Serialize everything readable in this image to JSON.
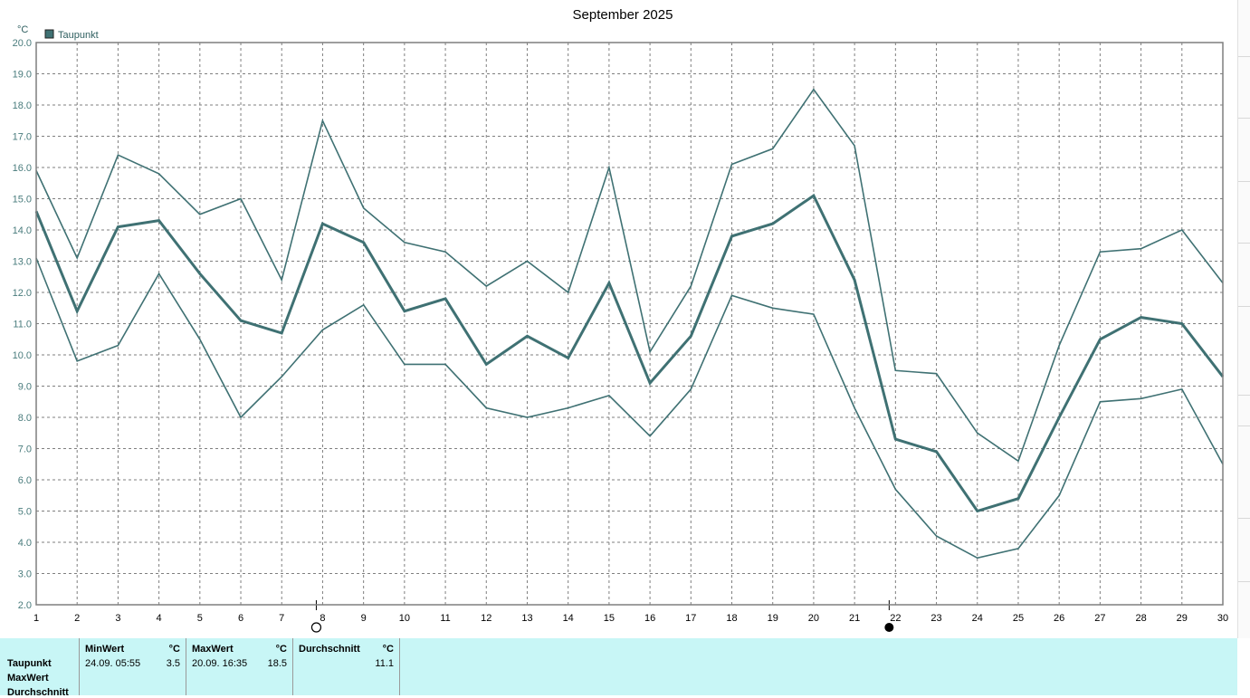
{
  "chart_data": {
    "type": "line",
    "title": "September 2025",
    "y_unit": "°C",
    "legend": [
      {
        "name": "Taupunkt",
        "color": "#3f7173"
      }
    ],
    "legend_placement": "top-left",
    "grid": true,
    "ylim": [
      2.0,
      20.0
    ],
    "y_ticks": [
      "2.0",
      "3.0",
      "4.0",
      "5.0",
      "6.0",
      "7.0",
      "8.0",
      "9.0",
      "10.0",
      "11.0",
      "12.0",
      "13.0",
      "14.0",
      "15.0",
      "16.0",
      "17.0",
      "18.0",
      "19.0",
      "20.0"
    ],
    "x": [
      1,
      2,
      3,
      4,
      5,
      6,
      7,
      8,
      9,
      10,
      11,
      12,
      13,
      14,
      15,
      16,
      17,
      18,
      19,
      20,
      21,
      22,
      23,
      24,
      25,
      26,
      27,
      28,
      29,
      30
    ],
    "x_tick_labels": [
      "1",
      "2",
      "3",
      "4",
      "5",
      "6",
      "7",
      "8",
      "9",
      "10",
      "11",
      "12",
      "13",
      "14",
      "15",
      "16",
      "17",
      "18",
      "19",
      "20",
      "21",
      "22",
      "23",
      "24",
      "25",
      "26",
      "27",
      "28",
      "29",
      "30"
    ],
    "series": [
      {
        "name": "Taupunkt",
        "role": "max",
        "width": 1.6,
        "values": [
          15.9,
          13.1,
          16.4,
          15.8,
          14.5,
          15.0,
          12.4,
          17.5,
          14.7,
          13.6,
          13.3,
          12.2,
          13.0,
          12.0,
          16.0,
          10.1,
          12.2,
          16.1,
          16.6,
          18.5,
          16.7,
          9.5,
          9.4,
          7.5,
          6.6,
          10.3,
          13.3,
          13.4,
          14.0,
          12.3
        ]
      },
      {
        "name": "Taupunkt",
        "role": "avg",
        "width": 3,
        "values": [
          14.6,
          11.4,
          14.1,
          14.3,
          12.6,
          11.1,
          10.7,
          14.2,
          13.6,
          11.4,
          11.8,
          9.7,
          10.6,
          9.9,
          12.3,
          9.1,
          10.6,
          13.8,
          14.2,
          15.1,
          12.4,
          7.3,
          6.9,
          5.0,
          5.4,
          8.0,
          10.5,
          11.2,
          11.0,
          9.3
        ]
      },
      {
        "name": "Taupunkt",
        "role": "min",
        "width": 1.6,
        "values": [
          13.1,
          9.8,
          10.3,
          12.6,
          10.5,
          8.0,
          9.3,
          10.8,
          11.6,
          9.7,
          9.7,
          8.3,
          8.0,
          8.3,
          8.7,
          7.4,
          8.9,
          11.9,
          11.5,
          11.3,
          8.3,
          5.7,
          4.2,
          3.5,
          3.8,
          5.5,
          8.5,
          8.6,
          8.9,
          6.5
        ]
      }
    ],
    "moon_markers": [
      {
        "day": 8,
        "phase": "full-moon"
      },
      {
        "day": 22,
        "phase": "new-moon"
      }
    ]
  },
  "stats": {
    "rows": [
      "Taupunkt",
      "MaxWert",
      "Durchschnitt"
    ],
    "min": {
      "header": "MinWert",
      "unit": "°C",
      "time": "24.09.  05:55",
      "value": "3.5"
    },
    "max": {
      "header": "MaxWert",
      "unit": "°C",
      "time": "20.09.  16:35",
      "value": "18.5"
    },
    "avg": {
      "header": "Durchschnitt",
      "unit": "°C",
      "value": "11.1"
    }
  }
}
